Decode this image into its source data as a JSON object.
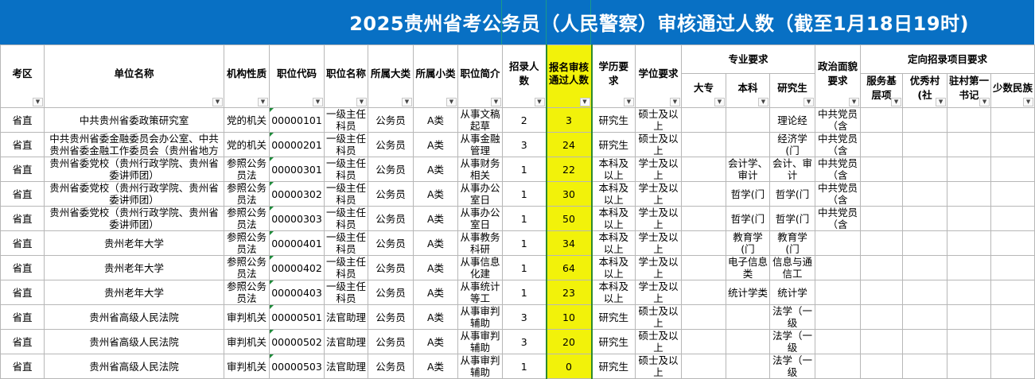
{
  "title": "2025贵州省考公务员（人民警察）审核通过人数（截至1月18日19时)",
  "headers": {
    "exam_area": "考区",
    "unit_name": "单位名称",
    "org_type": "机构性质",
    "position_code": "职位代码",
    "position_name": "职位名称",
    "category": "所属大类",
    "subcategory": "所属小类",
    "description": "职位简介",
    "recruit_count": "招录人数",
    "approved_count": "报名审核通过人数",
    "education": "学历要求",
    "degree": "学位要求",
    "major_group": "专业要求",
    "major_college": "大专",
    "major_undergrad": "本科",
    "major_grad": "研究生",
    "political": "政治面貌要求",
    "targeted_group": "定向招录项目要求",
    "t1": "服务基层项",
    "t2": "优秀村(社",
    "t3": "驻村第一书记",
    "t4": "少数民族"
  },
  "rows": [
    {
      "area": "省直",
      "unit": "中共贵州省委政策研究室",
      "org": "党的机关",
      "code": "00000101",
      "pos": "一级主任科员",
      "cat": "公务员",
      "sub": "A类",
      "desc": "从事文稿起草",
      "num": "2",
      "approved": "3",
      "edu": "研究生",
      "deg": "硕士及以上",
      "m_col": "",
      "m_ug": "",
      "m_gr": "理论经",
      "pol": "中共党员（含",
      "t1": "",
      "t2": "",
      "t3": "",
      "t4": ""
    },
    {
      "area": "省直",
      "unit": "中共贵州省委金融委员会办公室、中共贵州省委金融工作委员会（贵州省地方",
      "org": "党的机关",
      "code": "00000201",
      "pos": "一级主任科员",
      "cat": "公务员",
      "sub": "A类",
      "desc": "从事金融管理",
      "num": "3",
      "approved": "24",
      "edu": "研究生",
      "deg": "硕士及以上",
      "m_col": "",
      "m_ug": "",
      "m_gr": "经济学(门",
      "pol": "中共党员（含",
      "t1": "",
      "t2": "",
      "t3": "",
      "t4": ""
    },
    {
      "area": "省直",
      "unit": "贵州省委党校（贵州行政学院、贵州省委讲师团）",
      "org": "参照公务员法",
      "code": "00000301",
      "pos": "一级主任科员",
      "cat": "公务员",
      "sub": "A类",
      "desc": "从事财务相关",
      "num": "1",
      "approved": "22",
      "edu": "本科及以上",
      "deg": "学士及以上",
      "m_col": "",
      "m_ug": "会计学、审计",
      "m_gr": "会计、审计",
      "pol": "中共党员（含",
      "t1": "",
      "t2": "",
      "t3": "",
      "t4": ""
    },
    {
      "area": "省直",
      "unit": "贵州省委党校（贵州行政学院、贵州省委讲师团）",
      "org": "参照公务员法",
      "code": "00000302",
      "pos": "一级主任科员",
      "cat": "公务员",
      "sub": "A类",
      "desc": "从事办公室日",
      "num": "1",
      "approved": "30",
      "edu": "本科及以上",
      "deg": "学士及以上",
      "m_col": "",
      "m_ug": "哲学(门",
      "m_gr": "哲学(门",
      "pol": "中共党员（含",
      "t1": "",
      "t2": "",
      "t3": "",
      "t4": ""
    },
    {
      "area": "省直",
      "unit": "贵州省委党校（贵州行政学院、贵州省委讲师团）",
      "org": "参照公务员法",
      "code": "00000303",
      "pos": "一级主任科员",
      "cat": "公务员",
      "sub": "A类",
      "desc": "从事办公室日",
      "num": "1",
      "approved": "50",
      "edu": "本科及以上",
      "deg": "学士及以上",
      "m_col": "",
      "m_ug": "哲学(门",
      "m_gr": "哲学(门",
      "pol": "中共党员（含",
      "t1": "",
      "t2": "",
      "t3": "",
      "t4": ""
    },
    {
      "area": "省直",
      "unit": "贵州老年大学",
      "org": "参照公务员法",
      "code": "00000401",
      "pos": "一级主任科员",
      "cat": "公务员",
      "sub": "A类",
      "desc": "从事教务科研",
      "num": "1",
      "approved": "34",
      "edu": "本科及以上",
      "deg": "学士及以上",
      "m_col": "",
      "m_ug": "教育学(门",
      "m_gr": "教育学(门",
      "pol": "",
      "t1": "",
      "t2": "",
      "t3": "",
      "t4": ""
    },
    {
      "area": "省直",
      "unit": "贵州老年大学",
      "org": "参照公务员法",
      "code": "00000402",
      "pos": "一级主任科员",
      "cat": "公务员",
      "sub": "A类",
      "desc": "从事信息化建",
      "num": "1",
      "approved": "64",
      "edu": "本科及以上",
      "deg": "学士及以上",
      "m_col": "",
      "m_ug": "电子信息类",
      "m_gr": "信息与通信工",
      "pol": "",
      "t1": "",
      "t2": "",
      "t3": "",
      "t4": ""
    },
    {
      "area": "省直",
      "unit": "贵州老年大学",
      "org": "参照公务员法",
      "code": "00000403",
      "pos": "一级主任科员",
      "cat": "公务员",
      "sub": "A类",
      "desc": "从事统计等工",
      "num": "1",
      "approved": "23",
      "edu": "本科及以上",
      "deg": "学士及以上",
      "m_col": "",
      "m_ug": "统计学类",
      "m_gr": "统计学",
      "pol": "",
      "t1": "",
      "t2": "",
      "t3": "",
      "t4": ""
    },
    {
      "area": "省直",
      "unit": "贵州省高级人民法院",
      "org": "审判机关",
      "code": "00000501",
      "pos": "法官助理",
      "cat": "公务员",
      "sub": "A类",
      "desc": "从事审判辅助",
      "num": "3",
      "approved": "10",
      "edu": "研究生",
      "deg": "硕士及以上",
      "m_col": "",
      "m_ug": "",
      "m_gr": "法学（一级",
      "pol": "",
      "t1": "",
      "t2": "",
      "t3": "",
      "t4": ""
    },
    {
      "area": "省直",
      "unit": "贵州省高级人民法院",
      "org": "审判机关",
      "code": "00000502",
      "pos": "法官助理",
      "cat": "公务员",
      "sub": "A类",
      "desc": "从事审判辅助",
      "num": "3",
      "approved": "20",
      "edu": "研究生",
      "deg": "硕士及以上",
      "m_col": "",
      "m_ug": "",
      "m_gr": "法学（一级",
      "pol": "",
      "t1": "",
      "t2": "",
      "t3": "",
      "t4": ""
    },
    {
      "area": "省直",
      "unit": "贵州省高级人民法院",
      "org": "审判机关",
      "code": "00000503",
      "pos": "法官助理",
      "cat": "公务员",
      "sub": "A类",
      "desc": "从事审判辅助",
      "num": "1",
      "approved": "0",
      "edu": "研究生",
      "deg": "硕士及以上",
      "m_col": "",
      "m_ug": "",
      "m_gr": "法学（一级",
      "pol": "",
      "t1": "",
      "t2": "",
      "t3": "",
      "t4": ""
    }
  ]
}
